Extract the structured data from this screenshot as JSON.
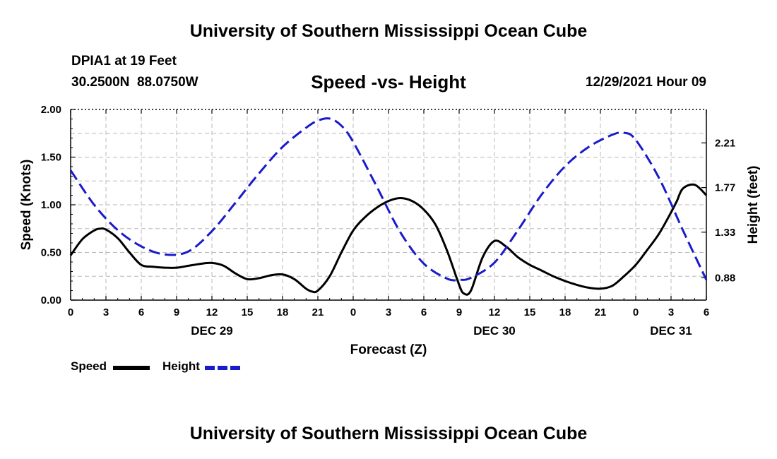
{
  "page": {
    "title_top": "University of Southern Mississippi Ocean Cube",
    "title_bottom": "University of Southern Mississippi Ocean Cube",
    "station": "DPIA1 at 19 Feet",
    "coords": "30.2500N  88.0750W",
    "datetime": "12/29/2021 Hour 09"
  },
  "legend": {
    "speed_label": "Speed",
    "height_label": "Height",
    "speed_color": "#000000",
    "height_color": "#1a1acc"
  },
  "chart_data": {
    "type": "line",
    "title": "Speed -vs- Height",
    "xlabel": "Forecast (Z)",
    "ylabel": "Speed (Knots)",
    "ylabel_right": "Height (feet)",
    "grid": true,
    "x_unit": "hours from 2021-12-29 00Z",
    "xlim": [
      0,
      54
    ],
    "x_ticks": [
      0,
      3,
      6,
      9,
      12,
      15,
      18,
      21,
      24,
      27,
      30,
      33,
      36,
      39,
      42,
      45,
      48,
      51,
      54
    ],
    "x_tick_labels": [
      "0",
      "3",
      "6",
      "9",
      "12",
      "15",
      "18",
      "21",
      "0",
      "3",
      "6",
      "9",
      "12",
      "15",
      "18",
      "21",
      "0",
      "3",
      "6"
    ],
    "day_labels": [
      {
        "x": 12,
        "label": "DEC 29"
      },
      {
        "x": 36,
        "label": "DEC 30"
      },
      {
        "x": 51,
        "label": "DEC 31"
      }
    ],
    "ylim": [
      0,
      2
    ],
    "y_ticks": [
      0,
      0.5,
      1,
      1.5,
      2
    ],
    "y_tick_labels": [
      "0.00",
      "0.50",
      "1.00",
      "1.50",
      "2.00"
    ],
    "ylim_right": [
      0.66,
      2.54
    ],
    "y2_ticks": [
      0.88,
      1.33,
      1.77,
      2.21
    ],
    "y2_tick_labels": [
      "0.88",
      "1.33",
      "1.77",
      "2.21"
    ],
    "series": [
      {
        "name": "Speed",
        "axis": "left",
        "color": "#000000",
        "dash": "solid",
        "x": [
          0,
          1,
          2,
          2.5,
          3,
          4,
          5,
          6,
          7,
          8,
          9,
          10,
          11,
          12,
          13,
          14,
          15,
          16,
          17,
          18,
          19,
          20,
          20.5,
          21,
          22,
          23,
          24,
          25,
          26,
          27,
          28,
          29,
          30,
          31,
          32,
          33,
          33.4,
          34,
          35,
          36,
          37,
          38,
          39,
          40,
          41,
          42,
          43,
          44,
          45,
          46,
          47,
          48,
          49,
          50,
          51,
          51.5,
          52,
          53,
          54
        ],
        "values": [
          0.47,
          0.64,
          0.73,
          0.75,
          0.74,
          0.65,
          0.5,
          0.37,
          0.35,
          0.34,
          0.34,
          0.36,
          0.38,
          0.39,
          0.36,
          0.28,
          0.22,
          0.23,
          0.26,
          0.27,
          0.22,
          0.12,
          0.09,
          0.1,
          0.25,
          0.5,
          0.73,
          0.87,
          0.97,
          1.04,
          1.07,
          1.04,
          0.95,
          0.79,
          0.51,
          0.16,
          0.07,
          0.1,
          0.45,
          0.62,
          0.56,
          0.45,
          0.37,
          0.31,
          0.25,
          0.2,
          0.16,
          0.13,
          0.12,
          0.15,
          0.25,
          0.37,
          0.53,
          0.7,
          0.92,
          1.04,
          1.17,
          1.21,
          1.1
        ]
      },
      {
        "name": "Height",
        "axis": "right",
        "color": "#1a1acc",
        "dash": "dashed",
        "x": [
          0,
          2,
          4,
          6,
          8,
          10,
          12,
          14,
          16,
          18,
          20,
          21,
          22,
          23,
          24,
          26,
          28,
          30,
          32,
          33,
          34,
          36,
          38,
          40,
          42,
          44,
          46,
          47,
          48,
          50,
          52,
          54
        ],
        "values": [
          1.94,
          1.6,
          1.35,
          1.19,
          1.11,
          1.14,
          1.34,
          1.62,
          1.91,
          2.17,
          2.36,
          2.43,
          2.45,
          2.38,
          2.22,
          1.78,
          1.33,
          1.02,
          0.87,
          0.86,
          0.88,
          1.03,
          1.35,
          1.7,
          1.98,
          2.17,
          2.29,
          2.31,
          2.24,
          1.86,
          1.35,
          0.86
        ]
      }
    ]
  }
}
